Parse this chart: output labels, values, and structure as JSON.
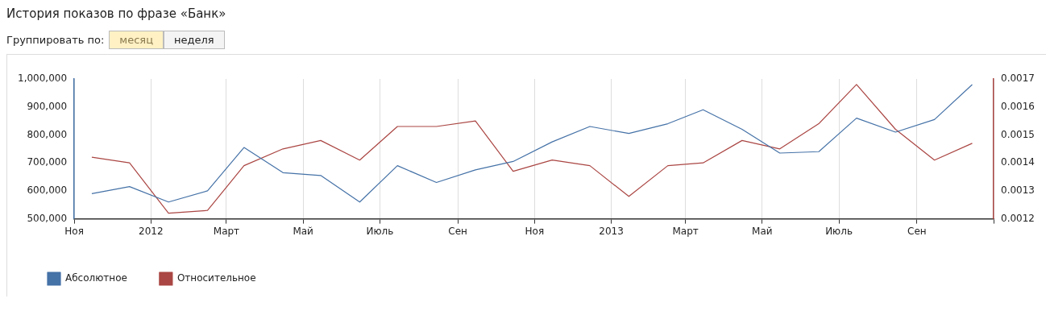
{
  "chart_data": {
    "type": "line",
    "title": "История показов по фразе «Банк»",
    "annotations": [
      "Группировать по:",
      "месяц",
      "неделя"
    ],
    "x": [
      "2011-11-15",
      "2011-12-15",
      "2012-01-15",
      "2012-02-15",
      "2012-03-15",
      "2012-04-15",
      "2012-05-15",
      "2012-06-15",
      "2012-07-15",
      "2012-08-15",
      "2012-09-15",
      "2012-10-15",
      "2012-11-15",
      "2012-12-15",
      "2013-01-15",
      "2013-02-15",
      "2013-03-15",
      "2013-04-15",
      "2013-05-15",
      "2013-06-15",
      "2013-07-15",
      "2013-08-15",
      "2013-09-15",
      "2013-10-15"
    ],
    "xlim": [
      "2011-11-01",
      "2013-11-01"
    ],
    "xticks": [
      {
        "value": "2011-11-01",
        "label": "Ноя"
      },
      {
        "value": "2012-01-01",
        "label": "2012"
      },
      {
        "value": "2012-03-01",
        "label": "Март"
      },
      {
        "value": "2012-05-01",
        "label": "Май"
      },
      {
        "value": "2012-07-01",
        "label": "Июль"
      },
      {
        "value": "2012-09-01",
        "label": "Сен"
      },
      {
        "value": "2012-11-01",
        "label": "Ноя"
      },
      {
        "value": "2013-01-01",
        "label": "2013"
      },
      {
        "value": "2013-03-01",
        "label": "Март"
      },
      {
        "value": "2013-05-01",
        "label": "Май"
      },
      {
        "value": "2013-07-01",
        "label": "Июль"
      },
      {
        "value": "2013-09-01",
        "label": "Сен"
      },
      {
        "value": "2013-11-01",
        "label": null
      }
    ],
    "ylim": [
      500000,
      1000000
    ],
    "yticks": [
      {
        "value": 500000,
        "label": "500,000"
      },
      {
        "value": 600000,
        "label": "600,000"
      },
      {
        "value": 700000,
        "label": "700,000"
      },
      {
        "value": 800000,
        "label": "800,000"
      },
      {
        "value": 900000,
        "label": "900,000"
      },
      {
        "value": 1000000,
        "label": "1,000,000"
      }
    ],
    "y2lim": [
      0.0012,
      0.0017
    ],
    "y2ticks": [
      0.0012,
      0.0013,
      0.0014,
      0.0015,
      0.0016,
      0.0017
    ],
    "series": [
      {
        "name": "Абсолютное",
        "color": "#4572a7",
        "values": [
          590000,
          615000,
          560000,
          600000,
          755000,
          665000,
          655000,
          560000,
          690000,
          630000,
          675000,
          705000,
          775000,
          830000,
          805000,
          840000,
          890000,
          820000,
          735000,
          740000,
          860000,
          810000,
          855000,
          980000
        ]
      },
      {
        "name": "Относительное",
        "color": "#aa4643",
        "axis": "y2",
        "values": [
          0.00142,
          0.0014,
          0.00122,
          0.00123,
          0.00139,
          0.00145,
          0.00148,
          0.00141,
          0.00153,
          0.00153,
          0.00155,
          0.00137,
          0.00141,
          0.00139,
          0.00128,
          0.00139,
          0.0014,
          0.00148,
          0.00145,
          0.00154,
          0.00168,
          0.00152,
          0.00141,
          0.00147
        ]
      }
    ],
    "grid": "x",
    "legend": "bottom left",
    "marker": "none",
    "line_style": "solid"
  }
}
